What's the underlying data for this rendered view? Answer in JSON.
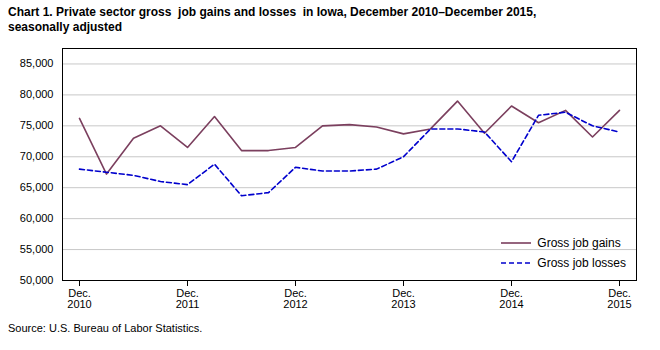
{
  "chart_data": {
    "type": "line",
    "title": "Chart 1. Private sector gross  job gains and losses  in Iowa, December 2010–December 2015,\nseasonally adjusted",
    "source": "Source: U.S. Bureau of Labor Statistics.",
    "categories": [
      "Dec.\n2010",
      null,
      null,
      null,
      "Dec.\n2011",
      null,
      null,
      null,
      "Dec.\n2012",
      null,
      null,
      null,
      "Dec.\n2013",
      null,
      null,
      null,
      "Dec.\n2014",
      null,
      null,
      null,
      "Dec.\n2015"
    ],
    "series": [
      {
        "name": "Gross job gains",
        "color": "#7B3F5E",
        "line_style": "solid",
        "values": [
          76200,
          67200,
          73000,
          75000,
          71500,
          76500,
          71000,
          71000,
          71500,
          75000,
          75200,
          74800,
          73700,
          74500,
          79000,
          73800,
          78200,
          75500,
          77500,
          73200,
          77500
        ]
      },
      {
        "name": "Gross job losses",
        "color": "#0000CD",
        "line_style": "dashed",
        "values": [
          68000,
          67500,
          67000,
          66000,
          65500,
          68800,
          63700,
          64200,
          68300,
          67700,
          67700,
          68000,
          70000,
          74500,
          74500,
          74000,
          69200,
          76700,
          77200,
          75000,
          74000
        ]
      }
    ],
    "ylim": [
      50000,
      87500
    ],
    "yticks": [
      {
        "value": 50000,
        "label": "50,000"
      },
      {
        "value": 55000,
        "label": "55,000"
      },
      {
        "value": 60000,
        "label": "60,000"
      },
      {
        "value": 65000,
        "label": "65,000"
      },
      {
        "value": 70000,
        "label": "70,000"
      },
      {
        "value": 75000,
        "label": "75,000"
      },
      {
        "value": 80000,
        "label": "80,000"
      },
      {
        "value": 85000,
        "label": "85,000"
      }
    ],
    "grid": true,
    "legend": "lower right"
  }
}
